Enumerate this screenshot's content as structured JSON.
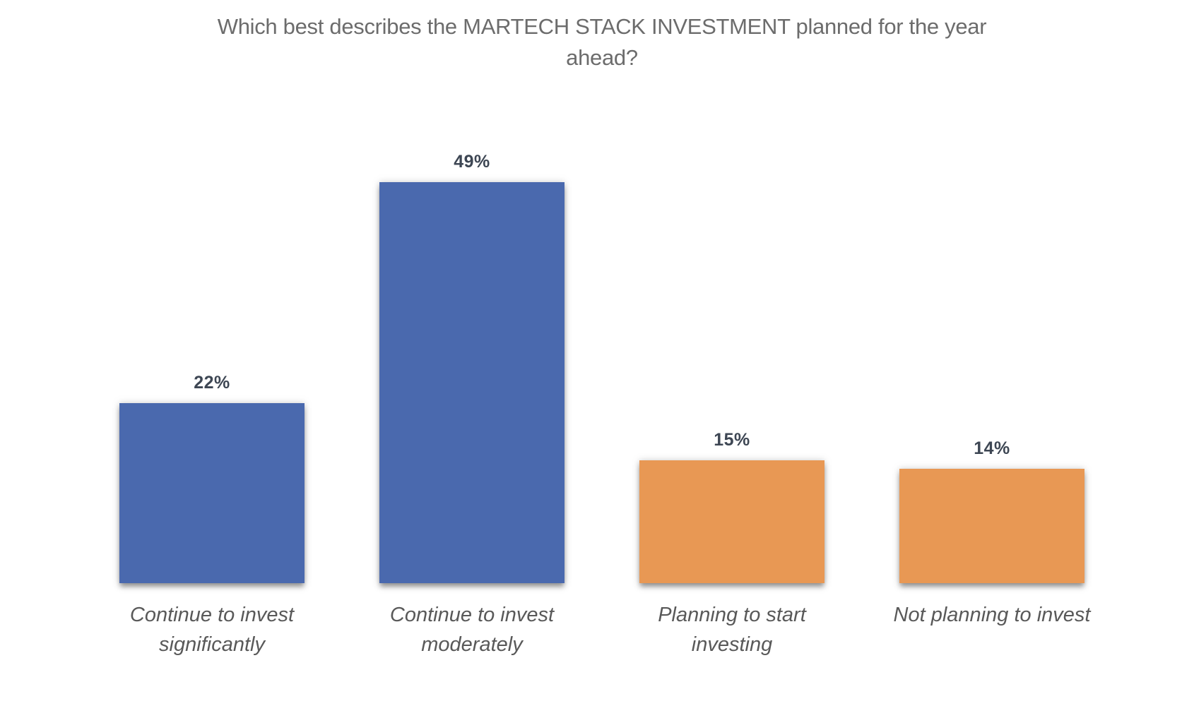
{
  "header": {
    "title_lines": [
      "Which best describes the MARTECH STACK INVESTMENT planned for the year",
      "ahead?"
    ]
  },
  "chart_data": {
    "type": "bar",
    "title": "Which best describes the MARTECH STACK INVESTMENT planned for the year ahead?",
    "categories": [
      "Continue to invest significantly",
      "Continue to invest moderately",
      "Planning to start investing",
      "Not planning to invest"
    ],
    "category_label_lines": [
      [
        "Continue to invest",
        "significantly"
      ],
      [
        "Continue to invest",
        "moderately"
      ],
      [
        "Planning to start",
        "investing"
      ],
      [
        "Not planning to invest"
      ]
    ],
    "values": [
      22,
      49,
      15,
      14
    ],
    "value_labels": [
      "22%",
      "49%",
      "15%",
      "14%"
    ],
    "unit": "%",
    "bar_colors": [
      "#4a69ae",
      "#4a69ae",
      "#e89854",
      "#e89854"
    ],
    "colors": {
      "blue": "#4a69ae",
      "orange": "#e89854",
      "title_text": "#6c6c6c",
      "value_label_text": "#3d4653",
      "category_label_text": "#595959",
      "background": "#ffffff"
    },
    "xlabel": "",
    "ylabel": "",
    "ylim": [
      0,
      55
    ],
    "grid": false,
    "legend": false,
    "axes_visible": false,
    "data_labels_position": "above-bar"
  }
}
